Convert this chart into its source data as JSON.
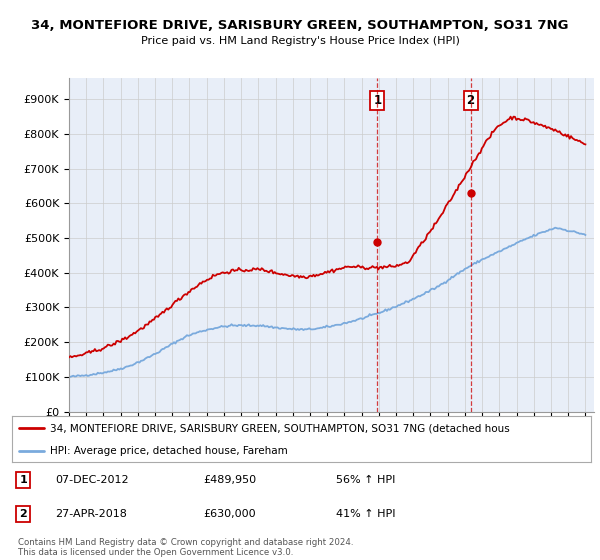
{
  "title": "34, MONTEFIORE DRIVE, SARISBURY GREEN, SOUTHAMPTON, SO31 7NG",
  "subtitle": "Price paid vs. HM Land Registry's House Price Index (HPI)",
  "ylabel_ticks": [
    "£0",
    "£100K",
    "£200K",
    "£300K",
    "£400K",
    "£500K",
    "£600K",
    "£700K",
    "£800K",
    "£900K"
  ],
  "ytick_values": [
    0,
    100000,
    200000,
    300000,
    400000,
    500000,
    600000,
    700000,
    800000,
    900000
  ],
  "ylim": [
    0,
    960000
  ],
  "xlim_start": 1995.0,
  "xlim_end": 2025.5,
  "sale1_x": 2012.92,
  "sale1_y": 489950,
  "sale2_x": 2018.33,
  "sale2_y": 630000,
  "legend_red": "34, MONTEFIORE DRIVE, SARISBURY GREEN, SOUTHAMPTON, SO31 7NG (detached hous",
  "legend_blue": "HPI: Average price, detached house, Fareham",
  "note1_label": "1",
  "note1_date": "07-DEC-2012",
  "note1_price": "£489,950",
  "note1_change": "56% ↑ HPI",
  "note2_label": "2",
  "note2_date": "27-APR-2018",
  "note2_price": "£630,000",
  "note2_change": "41% ↑ HPI",
  "footer": "Contains HM Land Registry data © Crown copyright and database right 2024.\nThis data is licensed under the Open Government Licence v3.0.",
  "red_color": "#cc0000",
  "blue_color": "#7aaadd",
  "background_plot": "#e8eef8",
  "background_fig": "#ffffff",
  "grid_color": "#cccccc",
  "hpi_base": [
    100000,
    104000,
    110000,
    118000,
    130000,
    148000,
    170000,
    195000,
    218000,
    232000,
    242000,
    248000,
    248000,
    248000,
    242000,
    238000,
    236000,
    240000,
    248000,
    258000,
    270000,
    284000,
    300000,
    318000,
    338000,
    360000,
    388000,
    415000,
    438000,
    458000,
    478000,
    498000,
    515000,
    530000,
    520000,
    510000
  ],
  "prop_base": [
    155000,
    165000,
    178000,
    194000,
    215000,
    242000,
    272000,
    308000,
    342000,
    372000,
    395000,
    405000,
    408000,
    410000,
    400000,
    392000,
    388000,
    396000,
    408000,
    418000,
    415000,
    415000,
    418000,
    430000,
    490000,
    550000,
    620000,
    690000,
    760000,
    820000,
    848000,
    840000,
    825000,
    810000,
    790000,
    770000
  ]
}
